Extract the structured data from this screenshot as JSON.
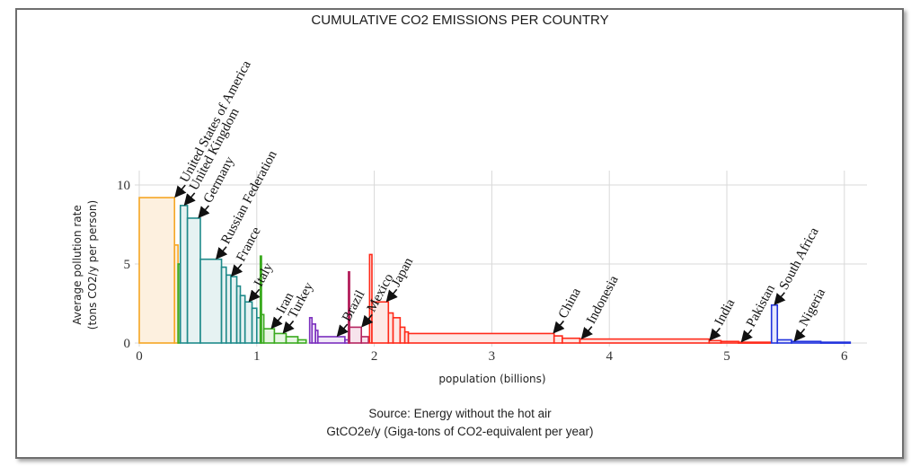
{
  "chart_data": {
    "type": "bar",
    "subtype": "variable-width step bars (population vs per-capita emissions)",
    "title": "CUMULATIVE CO2 EMISSIONS PER COUNTRY",
    "xlabel": "population (billions)",
    "ylabel_line1": "Average pollution rate",
    "ylabel_line2": "(tons CO2/y per person)",
    "xlim": [
      0,
      6.2
    ],
    "ylim": [
      0,
      11
    ],
    "xticks": [
      0,
      1,
      2,
      3,
      4,
      5,
      6
    ],
    "yticks": [
      0,
      5,
      10
    ],
    "grid": true,
    "caption_line1": "Source: Energy without the hot air",
    "caption_line2": "GtCO2e/y (Giga-tons of CO2-equivalent per year)",
    "group_colors": {
      "north_america": "#f5a623",
      "europe": "#1f8a8a",
      "middle_east": "#3aaa1e",
      "latin_america": "#7b2fbe",
      "central_america": "#b5245f",
      "asia": "#ff2a1a",
      "africa": "#2233dd"
    },
    "group_fills": {
      "north_america": "#fdf0df",
      "europe": "#e6f2f2",
      "middle_east": "#e8f6e4",
      "latin_america": "#f1e9f8",
      "central_america": "#f7e3ec",
      "asia": "#fde9e6",
      "africa": "#e6e8fb"
    },
    "bars": [
      {
        "group": "north_america",
        "x0": 0.0,
        "x1": 0.3,
        "y": 9.2
      },
      {
        "group": "north_america",
        "x0": 0.3,
        "x1": 0.33,
        "y": 6.2
      },
      {
        "group": "middle_east",
        "x0": 0.33,
        "x1": 0.345,
        "y": 5.0
      },
      {
        "group": "europe",
        "x0": 0.35,
        "x1": 0.41,
        "y": 8.7
      },
      {
        "group": "europe",
        "x0": 0.41,
        "x1": 0.52,
        "y": 7.9
      },
      {
        "group": "europe",
        "x0": 0.52,
        "x1": 0.7,
        "y": 5.3
      },
      {
        "group": "europe",
        "x0": 0.7,
        "x1": 0.74,
        "y": 4.8
      },
      {
        "group": "europe",
        "x0": 0.74,
        "x1": 0.78,
        "y": 4.3
      },
      {
        "group": "europe",
        "x0": 0.78,
        "x1": 0.83,
        "y": 4.2
      },
      {
        "group": "europe",
        "x0": 0.83,
        "x1": 0.86,
        "y": 3.6
      },
      {
        "group": "europe",
        "x0": 0.86,
        "x1": 0.9,
        "y": 3.0
      },
      {
        "group": "europe",
        "x0": 0.9,
        "x1": 0.96,
        "y": 2.6
      },
      {
        "group": "europe",
        "x0": 0.96,
        "x1": 1.0,
        "y": 2.2
      },
      {
        "group": "europe",
        "x0": 1.0,
        "x1": 1.03,
        "y": 1.6
      },
      {
        "group": "middle_east",
        "x0": 1.03,
        "x1": 1.04,
        "y": 5.5
      },
      {
        "group": "middle_east",
        "x0": 1.04,
        "x1": 1.06,
        "y": 1.8
      },
      {
        "group": "middle_east",
        "x0": 1.06,
        "x1": 1.15,
        "y": 0.9
      },
      {
        "group": "middle_east",
        "x0": 1.15,
        "x1": 1.25,
        "y": 0.6
      },
      {
        "group": "middle_east",
        "x0": 1.25,
        "x1": 1.35,
        "y": 0.4
      },
      {
        "group": "middle_east",
        "x0": 1.35,
        "x1": 1.42,
        "y": 0.2
      },
      {
        "group": "latin_america",
        "x0": 1.45,
        "x1": 1.47,
        "y": 1.6
      },
      {
        "group": "latin_america",
        "x0": 1.47,
        "x1": 1.5,
        "y": 1.2
      },
      {
        "group": "latin_america",
        "x0": 1.5,
        "x1": 1.52,
        "y": 0.8
      },
      {
        "group": "latin_america",
        "x0": 1.52,
        "x1": 1.75,
        "y": 0.4
      },
      {
        "group": "latin_america",
        "x0": 1.75,
        "x1": 1.78,
        "y": 0.2
      },
      {
        "group": "central_america",
        "x0": 1.78,
        "x1": 1.79,
        "y": 4.5
      },
      {
        "group": "central_america",
        "x0": 1.79,
        "x1": 1.89,
        "y": 1.0
      },
      {
        "group": "central_america",
        "x0": 1.89,
        "x1": 1.95,
        "y": 0.4
      },
      {
        "group": "asia",
        "x0": 1.96,
        "x1": 1.98,
        "y": 5.6
      },
      {
        "group": "asia",
        "x0": 1.98,
        "x1": 2.12,
        "y": 2.6
      },
      {
        "group": "asia",
        "x0": 2.12,
        "x1": 2.16,
        "y": 1.9
      },
      {
        "group": "asia",
        "x0": 2.16,
        "x1": 2.22,
        "y": 1.6
      },
      {
        "group": "asia",
        "x0": 2.22,
        "x1": 2.26,
        "y": 1.0
      },
      {
        "group": "asia",
        "x0": 2.26,
        "x1": 2.29,
        "y": 0.7
      },
      {
        "group": "asia",
        "x0": 2.29,
        "x1": 3.53,
        "y": 0.6
      },
      {
        "group": "asia",
        "x0": 3.53,
        "x1": 3.6,
        "y": 0.45
      },
      {
        "group": "asia",
        "x0": 3.6,
        "x1": 3.75,
        "y": 0.3
      },
      {
        "group": "asia",
        "x0": 3.75,
        "x1": 4.85,
        "y": 0.25
      },
      {
        "group": "asia",
        "x0": 4.85,
        "x1": 4.95,
        "y": 0.15
      },
      {
        "group": "asia",
        "x0": 4.95,
        "x1": 5.1,
        "y": 0.1
      },
      {
        "group": "asia",
        "x0": 5.1,
        "x1": 5.37,
        "y": 0.05
      },
      {
        "group": "africa",
        "x0": 5.38,
        "x1": 5.43,
        "y": 2.4
      },
      {
        "group": "africa",
        "x0": 5.43,
        "x1": 5.55,
        "y": 0.2
      },
      {
        "group": "africa",
        "x0": 5.55,
        "x1": 5.8,
        "y": 0.1
      },
      {
        "group": "africa",
        "x0": 5.8,
        "x1": 6.05,
        "y": 0.05
      }
    ],
    "annotations": [
      {
        "label": "United States of America",
        "x": 0.3,
        "y": 9.2
      },
      {
        "label": "United Kingdom",
        "x": 0.38,
        "y": 8.7
      },
      {
        "label": "Germany",
        "x": 0.5,
        "y": 7.9
      },
      {
        "label": "Russian Federation",
        "x": 0.65,
        "y": 5.3
      },
      {
        "label": "France",
        "x": 0.78,
        "y": 4.2
      },
      {
        "label": "Italy",
        "x": 0.93,
        "y": 2.6
      },
      {
        "label": "Iran",
        "x": 1.12,
        "y": 0.9
      },
      {
        "label": "Turkey",
        "x": 1.22,
        "y": 0.6
      },
      {
        "label": "Brazil",
        "x": 1.68,
        "y": 0.4
      },
      {
        "label": "Mexico",
        "x": 1.89,
        "y": 1.0
      },
      {
        "label": "Japan",
        "x": 2.1,
        "y": 2.6
      },
      {
        "label": "China",
        "x": 3.52,
        "y": 0.6
      },
      {
        "label": "Indonesia",
        "x": 3.76,
        "y": 0.25
      },
      {
        "label": "India",
        "x": 4.85,
        "y": 0.15
      },
      {
        "label": "Pakistan",
        "x": 5.12,
        "y": 0.05
      },
      {
        "label": "South Africa",
        "x": 5.4,
        "y": 2.4
      },
      {
        "label": "Nigeria",
        "x": 5.57,
        "y": 0.1
      }
    ]
  }
}
